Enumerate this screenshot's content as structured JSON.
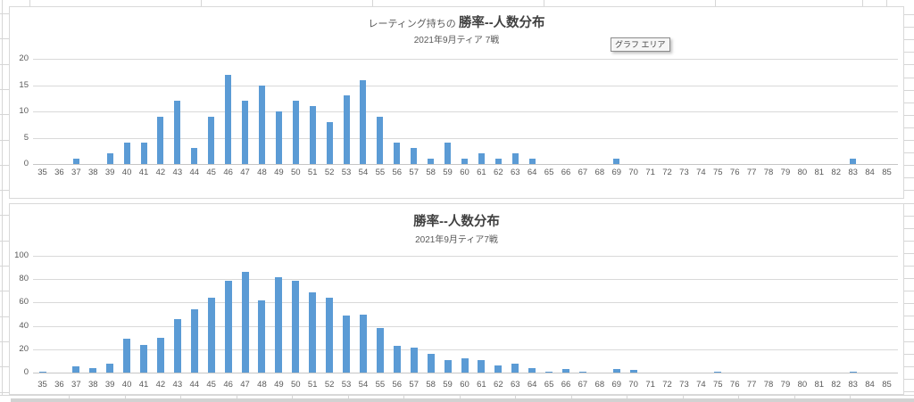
{
  "tooltip": {
    "label": "グラフ エリア"
  },
  "chart_data": [
    {
      "type": "bar",
      "title_prefix": "レーティング持ちの ",
      "title": "勝率--人数分布",
      "subtitle": "2021年9月ティア 7戦",
      "xlabel": "",
      "ylabel": "",
      "ylim": [
        0,
        20
      ],
      "yticks": [
        0,
        5,
        10,
        15,
        20
      ],
      "grid": true,
      "legend": "none",
      "bar_color": "#5B9BD5",
      "categories": [
        35,
        36,
        37,
        38,
        39,
        40,
        41,
        42,
        43,
        44,
        45,
        46,
        47,
        48,
        49,
        50,
        51,
        52,
        53,
        54,
        55,
        56,
        57,
        58,
        59,
        60,
        61,
        62,
        63,
        64,
        65,
        66,
        67,
        68,
        69,
        70,
        71,
        72,
        73,
        74,
        75,
        76,
        77,
        78,
        79,
        80,
        81,
        82,
        83,
        84,
        85
      ],
      "values": [
        0,
        0,
        1,
        0,
        2,
        4,
        4,
        9,
        12,
        3,
        9,
        17,
        12,
        15,
        10,
        12,
        11,
        8,
        13,
        16,
        9,
        4,
        3,
        1,
        4,
        1,
        2,
        1,
        2,
        1,
        0,
        0,
        0,
        0,
        1,
        0,
        0,
        0,
        0,
        0,
        0,
        0,
        0,
        0,
        0,
        0,
        0,
        0,
        1,
        0,
        0
      ]
    },
    {
      "type": "bar",
      "title_prefix": "",
      "title": "勝率--人数分布",
      "subtitle": "2021年9月ティア7戦",
      "xlabel": "",
      "ylabel": "",
      "ylim": [
        0,
        100
      ],
      "yticks": [
        0,
        20,
        40,
        60,
        80,
        100
      ],
      "grid": true,
      "legend": "none",
      "bar_color": "#5B9BD5",
      "categories": [
        35,
        36,
        37,
        38,
        39,
        40,
        41,
        42,
        43,
        44,
        45,
        46,
        47,
        48,
        49,
        50,
        51,
        52,
        53,
        54,
        55,
        56,
        57,
        58,
        59,
        60,
        61,
        62,
        63,
        64,
        65,
        66,
        67,
        68,
        69,
        70,
        71,
        72,
        73,
        74,
        75,
        76,
        77,
        78,
        79,
        80,
        81,
        82,
        83,
        84,
        85
      ],
      "values": [
        1,
        0,
        5,
        4,
        8,
        29,
        24,
        30,
        46,
        54,
        64,
        79,
        86,
        62,
        82,
        79,
        69,
        64,
        49,
        50,
        38,
        23,
        21,
        16,
        11,
        12,
        11,
        6,
        8,
        4,
        1,
        3,
        1,
        0,
        3,
        2,
        0,
        0,
        0,
        0,
        1,
        0,
        0,
        0,
        0,
        0,
        0,
        0,
        1,
        0,
        0
      ]
    }
  ]
}
